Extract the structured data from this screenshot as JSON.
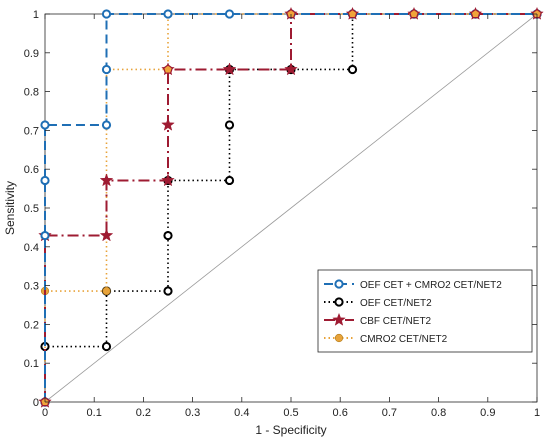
{
  "chart_data": {
    "type": "line",
    "title": "",
    "xlabel": "1 - Specificity",
    "ylabel": "Sensitivity",
    "xlim": [
      0,
      1
    ],
    "ylim": [
      0,
      1
    ],
    "xticks": [
      "0",
      "0.1",
      "0.2",
      "0.3",
      "0.4",
      "0.5",
      "0.6",
      "0.7",
      "0.8",
      "0.9",
      "1"
    ],
    "yticks": [
      "0",
      "0.1",
      "0.2",
      "0.3",
      "0.4",
      "0.5",
      "0.6",
      "0.7",
      "0.8",
      "0.9",
      "1"
    ],
    "grid": false,
    "legend_position": "bottom-right",
    "diagonal_reference": true,
    "series": [
      {
        "name": "OEF CET + CMRO2 CET/NET2",
        "color": "#1f6fb5",
        "line_style": "dashed",
        "marker": "open-circle",
        "x": [
          0,
          0,
          0,
          0,
          0.125,
          0.125,
          0.125,
          0.25,
          0.375,
          0.5,
          0.625,
          0.75,
          0.875,
          1
        ],
        "y": [
          0,
          0.429,
          0.571,
          0.714,
          0.714,
          0.857,
          1,
          1,
          1,
          1,
          1,
          1,
          1,
          1
        ]
      },
      {
        "name": "OEF CET/NET2",
        "color": "#000000",
        "line_style": "dotted",
        "marker": "open-circle",
        "x": [
          0,
          0,
          0.125,
          0.125,
          0.25,
          0.25,
          0.25,
          0.375,
          0.375,
          0.375,
          0.5,
          0.625,
          0.625,
          0.75,
          0.875,
          1
        ],
        "y": [
          0,
          0.143,
          0.143,
          0.286,
          0.286,
          0.429,
          0.571,
          0.571,
          0.714,
          0.857,
          0.857,
          0.857,
          1,
          1,
          1,
          1
        ]
      },
      {
        "name": "CBF CET/NET2",
        "color": "#9e1b32",
        "line_style": "dashdot",
        "marker": "star",
        "x": [
          0,
          0,
          0.125,
          0.125,
          0.25,
          0.25,
          0.25,
          0.375,
          0.5,
          0.5,
          0.625,
          0.75,
          0.875,
          1
        ],
        "y": [
          0,
          0.429,
          0.429,
          0.571,
          0.571,
          0.714,
          0.857,
          0.857,
          0.857,
          1,
          1,
          1,
          1,
          1
        ]
      },
      {
        "name": "CMRO2 CET/NET2",
        "color": "#e8a33a",
        "line_style": "dotted",
        "marker": "filled-circle",
        "x": [
          0,
          0,
          0.125,
          0.125,
          0.25,
          0.25,
          0.375,
          0.5,
          0.625,
          0.75,
          0.875,
          1
        ],
        "y": [
          0,
          0.286,
          0.286,
          0.857,
          0.857,
          1,
          1,
          1,
          1,
          1,
          1,
          1
        ]
      }
    ]
  }
}
